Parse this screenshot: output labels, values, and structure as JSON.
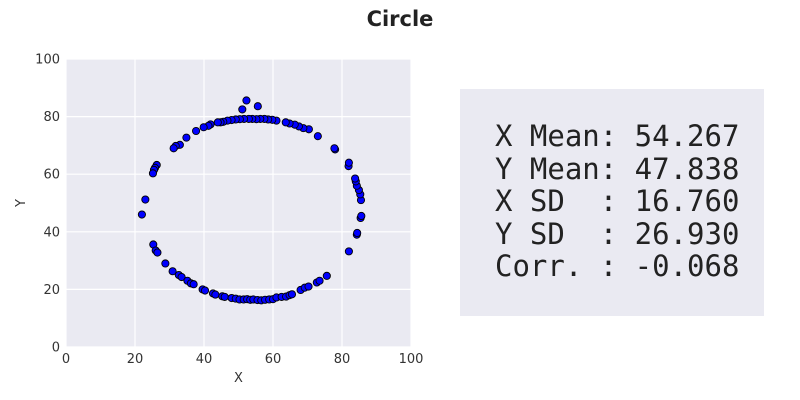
{
  "chart_data": {
    "type": "scatter",
    "title": "Circle",
    "xlabel": "X",
    "ylabel": "Y",
    "xlim": [
      0,
      100
    ],
    "ylim": [
      0,
      100
    ],
    "xticks": [
      "0",
      "20",
      "40",
      "60",
      "80",
      "100"
    ],
    "yticks": [
      "0",
      "20",
      "40",
      "60",
      "80",
      "100"
    ],
    "grid": true,
    "marker_color": "#0000ff",
    "marker_edge_color": "#000000",
    "background": "#eaeaf2",
    "points": [
      [
        52.3,
        85.6
      ],
      [
        55.6,
        83.6
      ],
      [
        51.1,
        82.5
      ],
      [
        23.0,
        51.2
      ],
      [
        22.0,
        46.0
      ],
      [
        25.3,
        35.6
      ],
      [
        26.0,
        33.5
      ],
      [
        26.5,
        32.8
      ],
      [
        28.8,
        29.0
      ],
      [
        30.9,
        26.3
      ],
      [
        32.7,
        25.0
      ],
      [
        33.5,
        24.3
      ],
      [
        35.2,
        23.0
      ],
      [
        36.2,
        22.1
      ],
      [
        37.0,
        21.8
      ],
      [
        39.6,
        20.0
      ],
      [
        40.3,
        19.6
      ],
      [
        42.6,
        18.6
      ],
      [
        43.3,
        18.2
      ],
      [
        45.3,
        17.6
      ],
      [
        46.0,
        17.4
      ],
      [
        48.0,
        17.0
      ],
      [
        49.2,
        16.8
      ],
      [
        50.3,
        16.5
      ],
      [
        51.5,
        16.5
      ],
      [
        52.5,
        16.6
      ],
      [
        53.4,
        16.4
      ],
      [
        54.3,
        16.5
      ],
      [
        55.5,
        16.3
      ],
      [
        56.6,
        16.2
      ],
      [
        57.7,
        16.4
      ],
      [
        58.9,
        16.5
      ],
      [
        60.0,
        16.6
      ],
      [
        61.0,
        17.2
      ],
      [
        62.5,
        17.4
      ],
      [
        63.8,
        17.5
      ],
      [
        64.8,
        18.0
      ],
      [
        65.5,
        18.3
      ],
      [
        68.0,
        19.8
      ],
      [
        69.2,
        20.6
      ],
      [
        70.3,
        21.0
      ],
      [
        72.7,
        22.4
      ],
      [
        73.5,
        23.0
      ],
      [
        75.6,
        24.7
      ],
      [
        82.0,
        33.2
      ],
      [
        84.3,
        39.0
      ],
      [
        84.4,
        39.6
      ],
      [
        85.4,
        44.8
      ],
      [
        85.6,
        45.5
      ],
      [
        85.5,
        51.0
      ],
      [
        85.3,
        53.0
      ],
      [
        84.9,
        54.5
      ],
      [
        84.3,
        56.0
      ],
      [
        84.0,
        57.5
      ],
      [
        83.8,
        58.5
      ],
      [
        81.9,
        62.8
      ],
      [
        82.0,
        64.0
      ],
      [
        78.0,
        68.6
      ],
      [
        77.8,
        69.0
      ],
      [
        73.0,
        73.2
      ],
      [
        70.4,
        75.6
      ],
      [
        68.8,
        76.0
      ],
      [
        67.5,
        76.6
      ],
      [
        66.3,
        77.2
      ],
      [
        64.8,
        77.6
      ],
      [
        63.7,
        78.0
      ],
      [
        61.0,
        78.6
      ],
      [
        59.8,
        78.9
      ],
      [
        58.6,
        79.0
      ],
      [
        57.5,
        79.2
      ],
      [
        56.3,
        79.2
      ],
      [
        55.2,
        79.1
      ],
      [
        54.0,
        79.2
      ],
      [
        53.0,
        79.2
      ],
      [
        51.6,
        79.2
      ],
      [
        50.4,
        79.1
      ],
      [
        49.2,
        79.0
      ],
      [
        48.0,
        78.8
      ],
      [
        46.8,
        78.6
      ],
      [
        45.6,
        78.2
      ],
      [
        44.8,
        78.0
      ],
      [
        44.0,
        78.0
      ],
      [
        41.9,
        77.3
      ],
      [
        41.3,
        76.8
      ],
      [
        39.9,
        76.3
      ],
      [
        37.7,
        75.0
      ],
      [
        34.9,
        72.7
      ],
      [
        33.0,
        70.2
      ],
      [
        31.8,
        69.8
      ],
      [
        31.2,
        69.0
      ],
      [
        26.3,
        63.2
      ],
      [
        25.8,
        62.2
      ],
      [
        25.5,
        61.5
      ],
      [
        25.2,
        60.3
      ]
    ]
  },
  "stats": {
    "lines": [
      "X Mean: 54.267",
      "Y Mean: 47.838",
      "X SD  : 16.760",
      "Y SD  : 26.930",
      "Corr. : -0.068"
    ]
  }
}
